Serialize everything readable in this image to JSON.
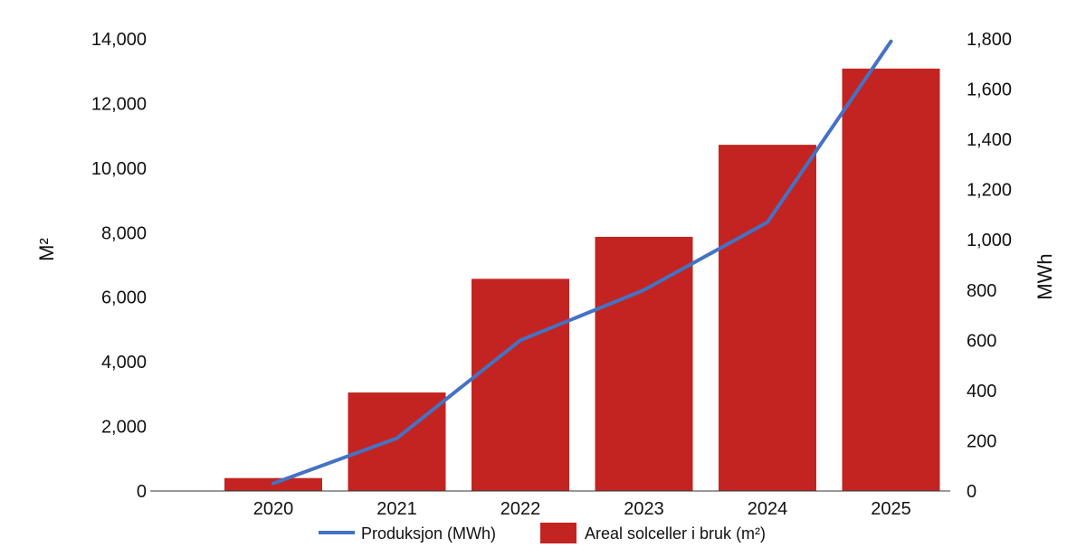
{
  "chart_data": {
    "type": "bar",
    "categories": [
      "2020",
      "2021",
      "2022",
      "2023",
      "2024",
      "2025"
    ],
    "series": [
      {
        "name": "Areal solceller i bruk (m²)",
        "type": "bar",
        "axis": "left",
        "color": "#c32421",
        "values": [
          400,
          3050,
          6570,
          7870,
          10720,
          13080
        ]
      },
      {
        "name": "Produksjon (MWh)",
        "type": "line",
        "axis": "right",
        "color": "#4472c4",
        "values": [
          30,
          210,
          600,
          800,
          1070,
          1790
        ]
      }
    ],
    "ylabel": "M²",
    "y2label": "MWh",
    "ylim": [
      0,
      14000
    ],
    "y2lim": [
      0,
      1800
    ],
    "yticks": [
      "0",
      "2,000",
      "4,000",
      "6,000",
      "8,000",
      "10,000",
      "12,000",
      "14,000"
    ],
    "y2ticks": [
      "0",
      "200",
      "400",
      "600",
      "800",
      "1,000",
      "1,200",
      "1,400",
      "1,600",
      "1,800"
    ],
    "grid": false,
    "legend_position": "bottom"
  }
}
